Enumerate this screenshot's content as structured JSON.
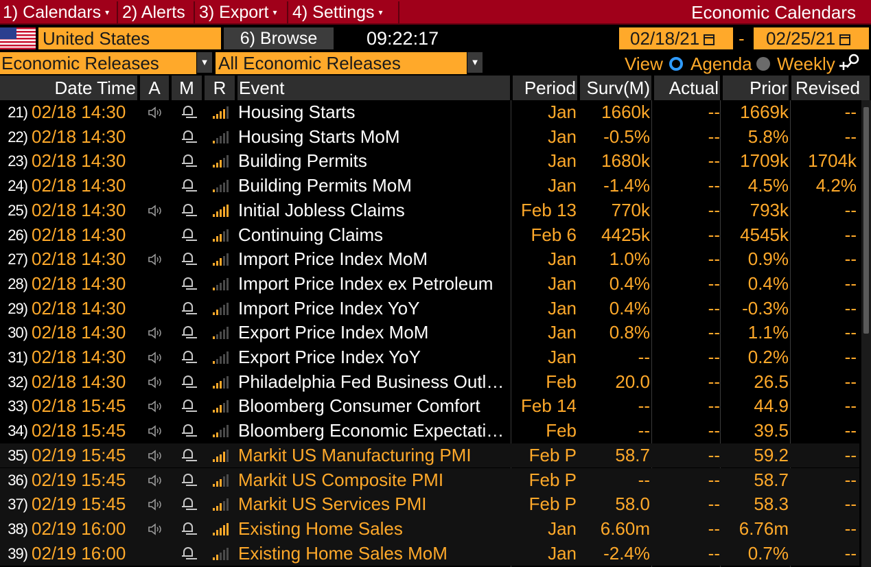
{
  "menubar": {
    "tabs": [
      {
        "label": "1) Calendars",
        "caret": "▾"
      },
      {
        "label": "2) Alerts",
        "caret": ""
      },
      {
        "label": "3) Export",
        "caret": "▾"
      },
      {
        "label": "4) Settings",
        "caret": "▾"
      }
    ],
    "title": "Economic Calendars"
  },
  "filters": {
    "country": "United States",
    "browse_label": "6) Browse",
    "time": "09:22:17",
    "start_date": "02/18/21",
    "date_separator": "-",
    "end_date": "02/25/21",
    "category": "Economic Releases",
    "subcategory": "All Economic Releases",
    "view_label": "View",
    "view_agenda": "Agenda",
    "view_weekly": "Weekly",
    "view_selected": "Agenda"
  },
  "icons": {
    "flag": "us-flag-icon",
    "audio": "speaker-icon",
    "alert": "bell-icon",
    "relevance": "signal-bars-icon",
    "calendar": "calendar-icon",
    "search": "search-plus-icon"
  },
  "colors": {
    "menu_bg": "#a0001a",
    "amber": "#ffa92a",
    "header_bg": "#2f2f2f",
    "radio_on": "#2f9bff"
  },
  "table": {
    "headers": {
      "datetime": "Date Time",
      "a": "A",
      "m": "M",
      "r": "R",
      "event": "Event",
      "period": "Period",
      "surv": "Surv(M)",
      "actual": "Actual",
      "prior": "Prior",
      "revised": "Revised"
    },
    "rows": [
      {
        "num": "21)",
        "datetime": "02/18 14:30",
        "audio": true,
        "relevance": 4,
        "event": "Housing Starts",
        "period": "Jan",
        "surv": "1660k",
        "actual": "--",
        "prior": "1669k",
        "revised": "--",
        "future": false
      },
      {
        "num": "22)",
        "datetime": "02/18 14:30",
        "audio": false,
        "relevance": 1,
        "event": "Housing Starts MoM",
        "period": "Jan",
        "surv": "-0.5%",
        "actual": "--",
        "prior": "5.8%",
        "revised": "--",
        "future": false
      },
      {
        "num": "23)",
        "datetime": "02/18 14:30",
        "audio": false,
        "relevance": 3,
        "event": "Building Permits",
        "period": "Jan",
        "surv": "1680k",
        "actual": "--",
        "prior": "1709k",
        "revised": "1704k",
        "future": false
      },
      {
        "num": "24)",
        "datetime": "02/18 14:30",
        "audio": false,
        "relevance": 1,
        "event": "Building Permits MoM",
        "period": "Jan",
        "surv": "-1.4%",
        "actual": "--",
        "prior": "4.5%",
        "revised": "4.2%",
        "future": false
      },
      {
        "num": "25)",
        "datetime": "02/18 14:30",
        "audio": true,
        "relevance": 5,
        "event": "Initial Jobless Claims",
        "period": "Feb 13",
        "surv": "770k",
        "actual": "--",
        "prior": "793k",
        "revised": "--",
        "future": false
      },
      {
        "num": "26)",
        "datetime": "02/18 14:30",
        "audio": false,
        "relevance": 3,
        "event": "Continuing Claims",
        "period": "Feb 6",
        "surv": "4425k",
        "actual": "--",
        "prior": "4545k",
        "revised": "--",
        "future": false
      },
      {
        "num": "27)",
        "datetime": "02/18 14:30",
        "audio": true,
        "relevance": 3,
        "event": "Import Price Index MoM",
        "period": "Jan",
        "surv": "1.0%",
        "actual": "--",
        "prior": "0.9%",
        "revised": "--",
        "future": false
      },
      {
        "num": "28)",
        "datetime": "02/18 14:30",
        "audio": false,
        "relevance": 1,
        "event": "Import Price Index ex Petroleum",
        "period": "Jan",
        "surv": "0.4%",
        "actual": "--",
        "prior": "0.4%",
        "revised": "--",
        "future": false
      },
      {
        "num": "29)",
        "datetime": "02/18 14:30",
        "audio": false,
        "relevance": 2,
        "event": "Import Price Index YoY",
        "period": "Jan",
        "surv": "0.4%",
        "actual": "--",
        "prior": "-0.3%",
        "revised": "--",
        "future": false
      },
      {
        "num": "30)",
        "datetime": "02/18 14:30",
        "audio": true,
        "relevance": 1,
        "event": "Export Price Index MoM",
        "period": "Jan",
        "surv": "0.8%",
        "actual": "--",
        "prior": "1.1%",
        "revised": "--",
        "future": false
      },
      {
        "num": "31)",
        "datetime": "02/18 14:30",
        "audio": true,
        "relevance": 1,
        "event": "Export Price Index YoY",
        "period": "Jan",
        "surv": "--",
        "actual": "--",
        "prior": "0.2%",
        "revised": "--",
        "future": false
      },
      {
        "num": "32)",
        "datetime": "02/18 14:30",
        "audio": true,
        "relevance": 3,
        "event": "Philadelphia Fed Business Outlook",
        "period": "Feb",
        "surv": "20.0",
        "actual": "--",
        "prior": "26.5",
        "revised": "--",
        "future": false
      },
      {
        "num": "33)",
        "datetime": "02/18 15:45",
        "audio": true,
        "relevance": 3,
        "event": "Bloomberg Consumer Comfort",
        "period": "Feb 14",
        "surv": "--",
        "actual": "--",
        "prior": "44.9",
        "revised": "--",
        "future": false
      },
      {
        "num": "34)",
        "datetime": "02/18 15:45",
        "audio": true,
        "relevance": 2,
        "event": "Bloomberg Economic Expectations",
        "period": "Feb",
        "surv": "--",
        "actual": "--",
        "prior": "39.5",
        "revised": "--",
        "future": false
      },
      {
        "num": "35)",
        "datetime": "02/19 15:45",
        "audio": true,
        "relevance": 4,
        "event": "Markit US Manufacturing PMI",
        "period": "Feb P",
        "surv": "58.7",
        "actual": "--",
        "prior": "59.2",
        "revised": "--",
        "future": true
      },
      {
        "num": "36)",
        "datetime": "02/19 15:45",
        "audio": true,
        "relevance": 3,
        "event": "Markit US Composite PMI",
        "period": "Feb P",
        "surv": "--",
        "actual": "--",
        "prior": "58.7",
        "revised": "--",
        "future": true
      },
      {
        "num": "37)",
        "datetime": "02/19 15:45",
        "audio": true,
        "relevance": 3,
        "event": "Markit US Services PMI",
        "period": "Feb P",
        "surv": "58.0",
        "actual": "--",
        "prior": "58.3",
        "revised": "--",
        "future": true
      },
      {
        "num": "38)",
        "datetime": "02/19 16:00",
        "audio": true,
        "relevance": 5,
        "event": "Existing Home Sales",
        "period": "Jan",
        "surv": "6.60m",
        "actual": "--",
        "prior": "6.76m",
        "revised": "--",
        "future": true
      },
      {
        "num": "39)",
        "datetime": "02/19 16:00",
        "audio": false,
        "relevance": 2,
        "event": "Existing Home Sales MoM",
        "period": "Jan",
        "surv": "-2.4%",
        "actual": "--",
        "prior": "0.7%",
        "revised": "--",
        "future": true
      }
    ]
  }
}
